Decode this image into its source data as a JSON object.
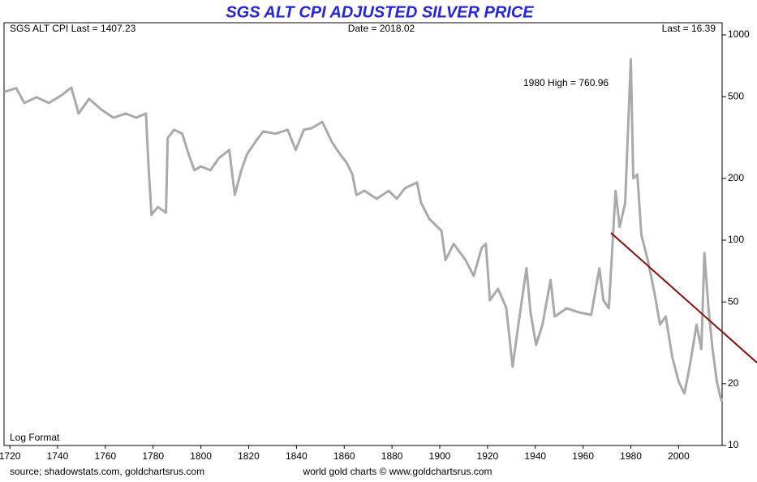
{
  "chart_data": {
    "type": "line",
    "title": "SGS ALT CPI ADJUSTED SILVER PRICE",
    "annotations": [
      "SGS ALT CPI Last = 1407.23",
      "Date = 2018.02",
      "Last = 16.39",
      "1980 High = 760.96",
      "Log Format"
    ],
    "source": "source; shadowstats.com, goldchartsrus.com",
    "credit": "world gold charts © www.goldchartsrus.com",
    "x": [
      1717.6,
      1722.7,
      1726.1,
      1731.2,
      1736.3,
      1741.4,
      1745.8,
      1748.8,
      1753.2,
      1758.3,
      1763.4,
      1768.5,
      1772.9,
      1777,
      1778,
      1779.3,
      1782,
      1785.4,
      1786.1,
      1788.8,
      1792.2,
      1794.9,
      1797.3,
      1800,
      1804,
      1807.5,
      1811.9,
      1814.2,
      1816.9,
      1819.3,
      1822.7,
      1826.1,
      1831.2,
      1836.3,
      1839.7,
      1843.1,
      1846.4,
      1850.8,
      1854.9,
      1858.3,
      1861,
      1863.4,
      1865.1,
      1868.5,
      1873.6,
      1878.6,
      1882,
      1885.4,
      1890.5,
      1892.2,
      1895.6,
      1900.7,
      1902.4,
      1905.8,
      1910.8,
      1914.2,
      1917.6,
      1919.3,
      1921,
      1924.4,
      1927.8,
      1930.5,
      1932.9,
      1936.3,
      1938,
      1940.3,
      1943,
      1946.4,
      1948.1,
      1953.2,
      1958.3,
      1963.4,
      1966.8,
      1968.5,
      1970.8,
      1973.6,
      1975.3,
      1977.6,
      1980,
      1981,
      1982.7,
      1984.4,
      1987.1,
      1989.8,
      1992.2,
      1994.6,
      1997.3,
      2000,
      2002.4,
      2004.7,
      2007.5,
      2009.5,
      2010.8,
      2012.5,
      2014.2,
      2016,
      2018
    ],
    "series": [
      {
        "name": "SGS ALT CPI Adjusted Silver",
        "color": "#aaaaaa",
        "values": [
          528,
          550,
          466,
          497,
          466,
          506,
          553,
          414,
          488,
          433,
          395,
          414,
          395,
          414,
          239,
          133,
          145,
          136,
          315,
          345,
          330,
          262,
          219,
          229,
          219,
          251,
          275,
          166,
          219,
          262,
          300,
          339,
          330,
          345,
          275,
          345,
          351,
          377,
          300,
          262,
          239,
          209,
          166,
          174,
          159,
          174,
          159,
          179,
          191,
          152,
          127,
          111,
          80,
          96,
          80,
          67,
          92,
          96,
          51,
          58,
          47,
          24.2,
          38.8,
          73,
          44.5,
          30.9,
          38.8,
          64,
          42.5,
          46.6,
          44.5,
          43.3,
          73,
          51,
          46.6,
          174,
          116,
          152,
          760.96,
          200,
          209,
          106,
          80,
          56,
          38.8,
          42.5,
          27,
          20.5,
          17.9,
          24.6,
          38.8,
          29.5,
          86.5,
          46.6,
          29.5,
          20.5,
          16.39
        ]
      }
    ],
    "xlim": [
      1717.6,
      2018.2
    ],
    "xticks": [
      1720,
      1740,
      1760,
      1780,
      1800,
      1820,
      1840,
      1860,
      1880,
      1900,
      1920,
      1940,
      1960,
      1980,
      2000
    ],
    "ylim": [
      10,
      1000
    ],
    "yticks": [
      10,
      20,
      50,
      100,
      200,
      500,
      1000
    ],
    "log_y": true
  }
}
